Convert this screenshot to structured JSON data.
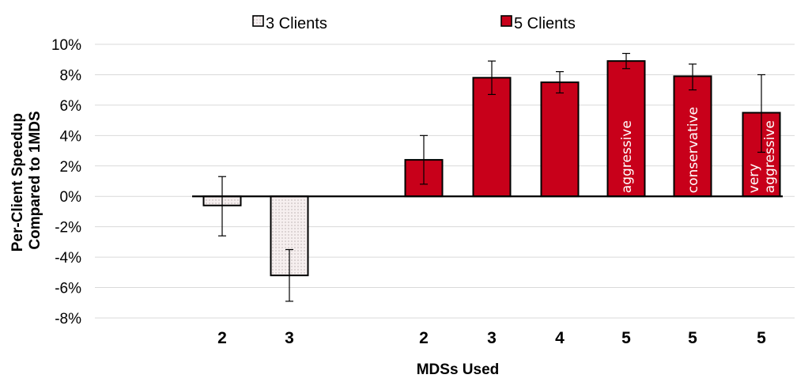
{
  "chart_data": {
    "type": "bar",
    "xlabel": "MDSs Used",
    "ylabel_lines": [
      "Per-Client Speedup",
      "Compared to 1MDS"
    ],
    "ylim": [
      -8,
      10
    ],
    "yticks": [
      10,
      8,
      6,
      4,
      2,
      0,
      -2,
      -4,
      -6,
      -8
    ],
    "ytick_labels": [
      "10%",
      "8%",
      "6%",
      "4%",
      "2%",
      "0%",
      "-2%",
      "-4%",
      "-6%",
      "-8%"
    ],
    "grid": true,
    "legend_placement": "top",
    "legend": [
      {
        "name": "3 Clients",
        "color": "#f4eded",
        "pattern": "dotted"
      },
      {
        "name": "5 Clients",
        "color": "#c8001a"
      }
    ],
    "series": [
      {
        "name": "3 Clients",
        "color": "#f4eded",
        "bars": [
          {
            "category": "2",
            "value": -0.6,
            "err_low": -2.6,
            "err_high": 1.3
          },
          {
            "category": "3",
            "value": -5.2,
            "err_low": -6.9,
            "err_high": -3.5
          }
        ]
      },
      {
        "name": "5 Clients",
        "color": "#c8001a",
        "bars": [
          {
            "category": "2",
            "value": 2.4,
            "err_low": 0.8,
            "err_high": 4.0
          },
          {
            "category": "3",
            "value": 7.8,
            "err_low": 6.7,
            "err_high": 8.9
          },
          {
            "category": "4",
            "value": 7.5,
            "err_low": 6.8,
            "err_high": 8.2
          },
          {
            "category": "5",
            "value": 8.9,
            "err_low": 8.4,
            "err_high": 9.4,
            "annotation": [
              "aggressive"
            ]
          },
          {
            "category": "5",
            "value": 7.9,
            "err_low": 7.0,
            "err_high": 8.7,
            "annotation": [
              "conservative"
            ]
          },
          {
            "category": "5",
            "value": 5.5,
            "err_low": 2.9,
            "err_high": 8.0,
            "annotation": [
              "very",
              "aggressive"
            ]
          }
        ]
      }
    ]
  }
}
